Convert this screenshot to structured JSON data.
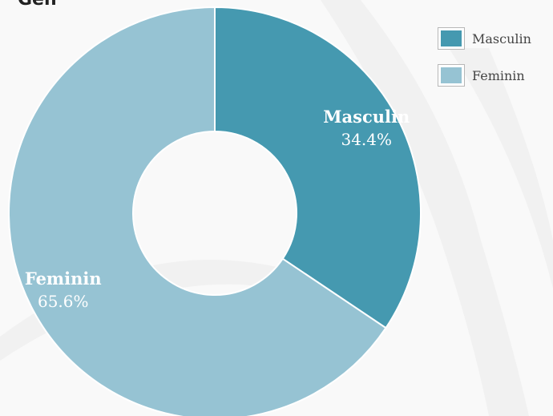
{
  "chart_data": {
    "type": "pie",
    "title": "Gen",
    "slices": [
      {
        "label": "Masculin",
        "value": 34.4,
        "percent_label": "34.4%",
        "color": "#4599b0"
      },
      {
        "label": "Feminin",
        "value": 65.6,
        "percent_label": "65.6%",
        "color": "#96c3d3"
      }
    ],
    "legend_position": "top-right",
    "donut": true
  }
}
